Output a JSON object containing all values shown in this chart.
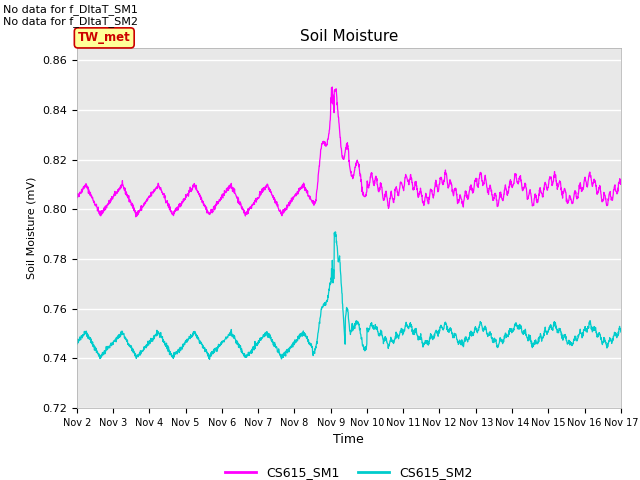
{
  "title": "Soil Moisture",
  "xlabel": "Time",
  "ylabel": "Soil Moisture (mV)",
  "ylim": [
    0.72,
    0.865
  ],
  "xlim_days": [
    2,
    17
  ],
  "bg_color": "#e8e8e8",
  "fig_bg": "#ffffff",
  "color_sm1": "#ff00ff",
  "color_sm2": "#00cccc",
  "legend_labels": [
    "CS615_SM1",
    "CS615_SM2"
  ],
  "annotation_texts": [
    "No data for f_DltaT_SM1",
    "No data for f_DltaT_SM2"
  ],
  "tw_met_label": "TW_met",
  "tw_met_bg": "#ffff99",
  "tw_met_fg": "#cc0000",
  "yticks": [
    0.72,
    0.74,
    0.76,
    0.78,
    0.8,
    0.82,
    0.84,
    0.86
  ],
  "xtick_labels": [
    "Nov 2",
    "Nov 3",
    "Nov 4",
    "Nov 5",
    "Nov 6",
    "Nov 7",
    "Nov 8",
    "Nov 9",
    "Nov 10",
    "Nov 11",
    "Nov 12",
    "Nov 13",
    "Nov 14",
    "Nov 15",
    "Nov 16",
    "Nov 17"
  ]
}
